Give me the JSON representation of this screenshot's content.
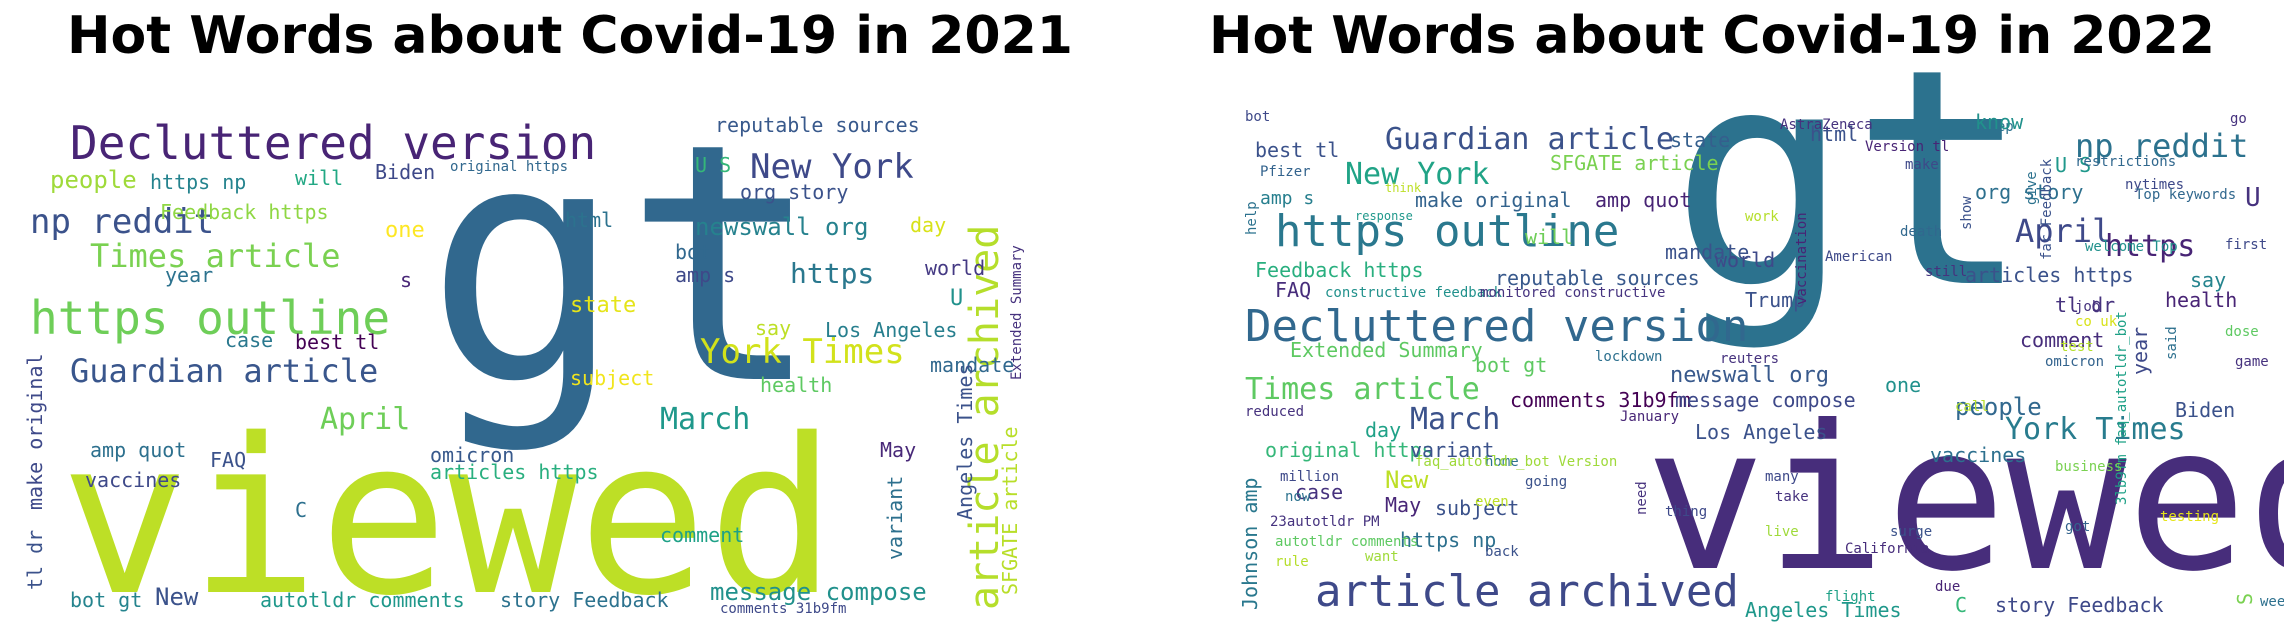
{
  "panels": [
    {
      "title": "Hot Words about Covid-19 in 2021",
      "words": [
        {
          "text": "gt",
          "color": "#31688e"
        },
        {
          "text": "viewed",
          "color": "#bddf26"
        },
        {
          "text": "Decluttered version",
          "color": "#482475"
        },
        {
          "text": "https outline",
          "color": "#6ece58"
        },
        {
          "text": "article archived",
          "color": "#b5de2b"
        },
        {
          "text": "New York",
          "color": "#3e4989"
        },
        {
          "text": "np reddit",
          "color": "#3b528b"
        },
        {
          "text": "Times article",
          "color": "#7ad151"
        },
        {
          "text": "Guardian article",
          "color": "#39568c"
        },
        {
          "text": "York Times",
          "color": "#d2e21b"
        },
        {
          "text": "March",
          "color": "#1f988b"
        },
        {
          "text": "April",
          "color": "#6ece58"
        },
        {
          "text": "newswall org",
          "color": "#26828e"
        },
        {
          "text": "https",
          "color": "#2a788e"
        },
        {
          "text": "people",
          "color": "#9fda3a"
        },
        {
          "text": "reputable sources",
          "color": "#38598c"
        },
        {
          "text": "https np",
          "color": "#25838e"
        },
        {
          "text": "will",
          "color": "#22a884"
        },
        {
          "text": "Biden",
          "color": "#3e4989"
        },
        {
          "text": "original https",
          "color": "#31688e"
        },
        {
          "text": "U S",
          "color": "#35b779"
        },
        {
          "text": "org story",
          "color": "#3b528b"
        },
        {
          "text": "Feedback https",
          "color": "#8fd744"
        },
        {
          "text": "one",
          "color": "#fde725"
        },
        {
          "text": "html",
          "color": "#2c728e"
        },
        {
          "text": "day",
          "color": "#d8e219"
        },
        {
          "text": "bot",
          "color": "#31688e"
        },
        {
          "text": "amp s",
          "color": "#3e4989"
        },
        {
          "text": "world",
          "color": "#443983"
        },
        {
          "text": "U",
          "color": "#21918c"
        },
        {
          "text": "year",
          "color": "#2c728e"
        },
        {
          "text": "s",
          "color": "#482677"
        },
        {
          "text": "state",
          "color": "#e5e419"
        },
        {
          "text": "say",
          "color": "#bddf26"
        },
        {
          "text": "Los Angeles",
          "color": "#277f8e"
        },
        {
          "text": "case",
          "color": "#2a788e"
        },
        {
          "text": "best tl",
          "color": "#440154"
        },
        {
          "text": "subject",
          "color": "#f1e51d"
        },
        {
          "text": "health",
          "color": "#5ec962"
        },
        {
          "text": "mandate",
          "color": "#31688e"
        },
        {
          "text": "amp quot",
          "color": "#2d708e"
        },
        {
          "text": "FAQ",
          "color": "#3b528b"
        },
        {
          "text": "omicron",
          "color": "#38598c"
        },
        {
          "text": "articles https",
          "color": "#29af7f"
        },
        {
          "text": "vaccines",
          "color": "#3e4989"
        },
        {
          "text": "C",
          "color": "#2d708e"
        },
        {
          "text": "comment",
          "color": "#1fa187"
        },
        {
          "text": "May",
          "color": "#482878"
        },
        {
          "text": "variant",
          "color": "#2d708e"
        },
        {
          "text": "Angeles Times",
          "color": "#3b528b"
        },
        {
          "text": "SFGATE article",
          "color": "#b8de29"
        },
        {
          "text": "Extended Summary",
          "color": "#46327e"
        },
        {
          "text": "make original",
          "color": "#3e4989"
        },
        {
          "text": "tl dr",
          "color": "#3b528b"
        },
        {
          "text": "bot gt",
          "color": "#25848e"
        },
        {
          "text": "New",
          "color": "#3b528b"
        },
        {
          "text": "autotldr comments",
          "color": "#1f988b"
        },
        {
          "text": "story Feedback",
          "color": "#2c728e"
        },
        {
          "text": "message compose",
          "color": "#21918c"
        },
        {
          "text": "comments 31b9fm",
          "color": "#3e4989"
        }
      ]
    },
    {
      "title": "Hot Words about Covid-19 in 2022",
      "words": [
        {
          "text": "gt",
          "color": "#2c728e"
        },
        {
          "text": "viewed",
          "color": "#472d7b"
        },
        {
          "text": "Decluttered version",
          "color": "#31688e"
        },
        {
          "text": "https outline",
          "color": "#2a788e"
        },
        {
          "text": "article archived",
          "color": "#3e4989"
        },
        {
          "text": "Guardian article",
          "color": "#3b528b"
        },
        {
          "text": "np reddit",
          "color": "#2c728e"
        },
        {
          "text": "New York",
          "color": "#20a386"
        },
        {
          "text": "Times article",
          "color": "#5ec962"
        },
        {
          "text": "York Times",
          "color": "#287c8e"
        },
        {
          "text": "April",
          "color": "#3e4989"
        },
        {
          "text": "https",
          "color": "#482475"
        },
        {
          "text": "March",
          "color": "#3b528b"
        },
        {
          "text": "newswall org",
          "color": "#38598c"
        },
        {
          "text": "people",
          "color": "#31688e"
        },
        {
          "text": "best tl",
          "color": "#3b528b"
        },
        {
          "text": "Pfizer",
          "color": "#33638d"
        },
        {
          "text": "SFGATE article",
          "color": "#7ad151"
        },
        {
          "text": "amp s",
          "color": "#277f8e"
        },
        {
          "text": "make original",
          "color": "#33638d"
        },
        {
          "text": "amp quot",
          "color": "#482475"
        },
        {
          "text": "reputable sources",
          "color": "#38598c"
        },
        {
          "text": "Feedback https",
          "color": "#29af7f"
        },
        {
          "text": "FAQ",
          "color": "#472d7b"
        },
        {
          "text": "constructive feedback",
          "color": "#21918c"
        },
        {
          "text": "monitored constructive",
          "color": "#46337f"
        },
        {
          "text": "Extended Summary",
          "color": "#5ec962"
        },
        {
          "text": "bot gt",
          "color": "#5ec962"
        },
        {
          "text": "comments 31b9fm",
          "color": "#440154"
        },
        {
          "text": "message compose",
          "color": "#3e4989"
        },
        {
          "text": "Los Angeles",
          "color": "#3b528b"
        },
        {
          "text": "original https",
          "color": "#35b779"
        },
        {
          "text": "day",
          "color": "#1fa187"
        },
        {
          "text": "variant",
          "color": "#3b528b"
        },
        {
          "text": "New",
          "color": "#bddf26"
        },
        {
          "text": "case",
          "color": "#46327e"
        },
        {
          "text": "May",
          "color": "#482677"
        },
        {
          "text": "subject",
          "color": "#3b528b"
        },
        {
          "text": "https np",
          "color": "#2d708e"
        },
        {
          "text": "Angeles Times",
          "color": "#1f988b"
        },
        {
          "text": "story Feedback",
          "color": "#3e4989"
        },
        {
          "text": "state",
          "color": "#355f8d"
        },
        {
          "text": "html",
          "color": "#3b528b"
        },
        {
          "text": "org story",
          "color": "#2d708e"
        },
        {
          "text": "U S",
          "color": "#1f988b"
        },
        {
          "text": "U",
          "color": "#46327e"
        },
        {
          "text": "will",
          "color": "#6ece58"
        },
        {
          "text": "mandate",
          "color": "#3b528b"
        },
        {
          "text": "world",
          "color": "#3e4989"
        },
        {
          "text": "articles https",
          "color": "#3b528b"
        },
        {
          "text": "tl dr",
          "color": "#46327e"
        },
        {
          "text": "comment",
          "color": "#472d7b"
        },
        {
          "text": "health",
          "color": "#482475"
        },
        {
          "text": "Biden",
          "color": "#3b528b"
        },
        {
          "text": "vaccines",
          "color": "#2d708e"
        },
        {
          "text": "one",
          "color": "#21918c"
        },
        {
          "text": "year",
          "color": "#3e4989"
        },
        {
          "text": "omicron",
          "color": "#33638d"
        },
        {
          "text": "Trump",
          "color": "#3b528b"
        },
        {
          "text": "say",
          "color": "#25848e"
        },
        {
          "text": "C",
          "color": "#35b779"
        },
        {
          "text": "S",
          "color": "#7ad151"
        },
        {
          "text": "3lb9fm faq_autotldr_bot",
          "color": "#1fa187"
        },
        {
          "text": "Johnson amp",
          "color": "#2a788e"
        },
        {
          "text": "autotldr comments",
          "color": "#5ec962"
        },
        {
          "text": "23autotldr PM",
          "color": "#46337f"
        },
        {
          "text": "million",
          "color": "#3e4989"
        },
        {
          "text": "reduced",
          "color": "#46327e"
        },
        {
          "text": "response",
          "color": "#1f988b"
        },
        {
          "text": "AstraZeneca",
          "color": "#46327e"
        },
        {
          "text": "Version tl",
          "color": "#482475"
        },
        {
          "text": "keep",
          "color": "#2c728e"
        },
        {
          "text": "make",
          "color": "#3e4989"
        },
        {
          "text": "show",
          "color": "#3b528b"
        },
        {
          "text": "vaccination",
          "color": "#482475"
        },
        {
          "text": "American",
          "color": "#3e4989"
        },
        {
          "text": "death",
          "color": "#31688e"
        },
        {
          "text": "lockdown",
          "color": "#2d708e"
        },
        {
          "text": "January",
          "color": "#482677"
        },
        {
          "text": "reuters",
          "color": "#46327e"
        },
        {
          "text": "need",
          "color": "#46327e"
        },
        {
          "text": "California",
          "color": "#472d7b"
        },
        {
          "text": "surge",
          "color": "#3b528b"
        },
        {
          "text": "got",
          "color": "#33638d"
        },
        {
          "text": "testing",
          "color": "#e5e419"
        },
        {
          "text": "due",
          "color": "#482475"
        },
        {
          "text": "flight",
          "color": "#1fa187"
        },
        {
          "text": "week",
          "color": "#2d708e"
        },
        {
          "text": "nytimes",
          "color": "#3e4989"
        },
        {
          "text": "restrictions",
          "color": "#31688e"
        },
        {
          "text": "Top keywords",
          "color": "#31688e"
        },
        {
          "text": "welcome Top",
          "color": "#21918c"
        },
        {
          "text": "first",
          "color": "#3e4989"
        },
        {
          "text": "dose",
          "color": "#5ec962"
        },
        {
          "text": "game",
          "color": "#46327e"
        },
        {
          "text": "said",
          "color": "#2d708e"
        },
        {
          "text": "job",
          "color": "#46327e"
        },
        {
          "text": "co uk",
          "color": "#d8e219"
        },
        {
          "text": "test",
          "color": "#b5de2b"
        },
        {
          "text": "call",
          "color": "#b5de2b"
        },
        {
          "text": "give",
          "color": "#2c728e"
        },
        {
          "text": "far Feedback",
          "color": "#3b528b"
        },
        {
          "text": "still",
          "color": "#46327e"
        },
        {
          "text": "work",
          "color": "#b5de2b"
        },
        {
          "text": "think",
          "color": "#bddf26"
        },
        {
          "text": "help",
          "color": "#2c728e"
        },
        {
          "text": "home",
          "color": "#2c728e"
        },
        {
          "text": "faq_autotldr_bot Version",
          "color": "#9fda3a"
        },
        {
          "text": "even",
          "color": "#bddf26"
        },
        {
          "text": "going",
          "color": "#3b528b"
        },
        {
          "text": "many",
          "color": "#3e4989"
        },
        {
          "text": "take",
          "color": "#46327e"
        },
        {
          "text": "thing",
          "color": "#3e4989"
        },
        {
          "text": "live",
          "color": "#9fda3a"
        },
        {
          "text": "back",
          "color": "#3b528b"
        },
        {
          "text": "want",
          "color": "#9fda3a"
        },
        {
          "text": "rule",
          "color": "#b5de2b"
        },
        {
          "text": "business",
          "color": "#7ad151"
        },
        {
          "text": "now",
          "color": "#2c728e"
        },
        {
          "text": "go",
          "color": "#46327e"
        },
        {
          "text": "know",
          "color": "#21918c"
        },
        {
          "text": "bot",
          "color": "#3e4989"
        }
      ]
    }
  ]
}
